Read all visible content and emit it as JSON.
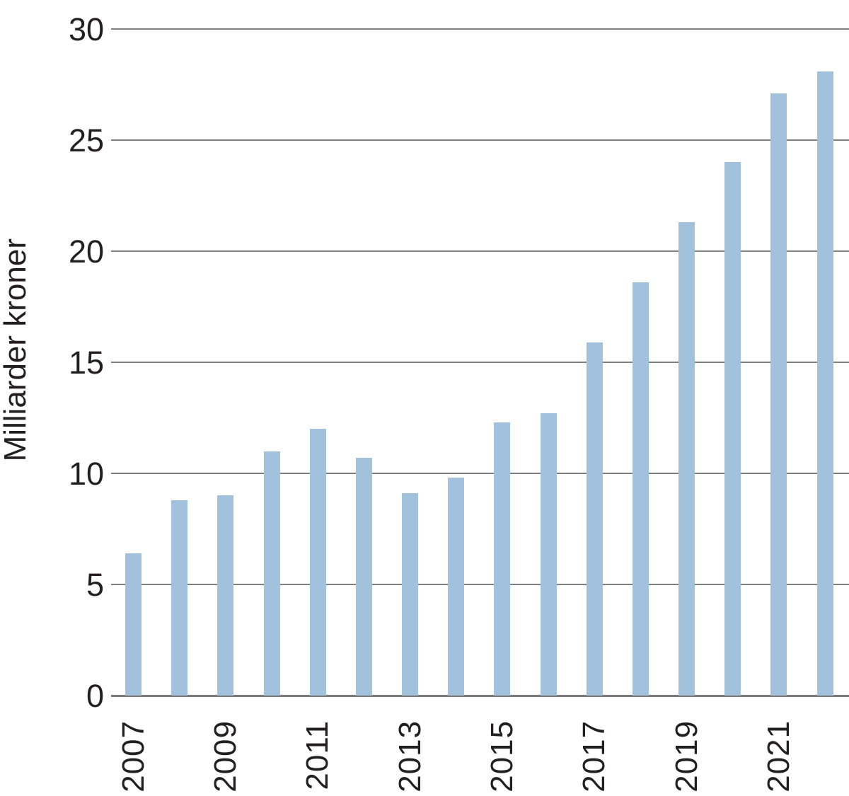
{
  "chart_data": {
    "type": "bar",
    "title": "",
    "xlabel": "",
    "ylabel": "Milliarder kroner",
    "categories": [
      "2007",
      "2008",
      "2009",
      "2010",
      "2011",
      "2012",
      "2013",
      "2014",
      "2015",
      "2016",
      "2017",
      "2018",
      "2019",
      "2020",
      "2021",
      "2022"
    ],
    "values": [
      6.4,
      8.8,
      9.0,
      11.0,
      12.0,
      10.7,
      9.1,
      9.8,
      12.3,
      12.7,
      15.9,
      18.6,
      21.3,
      24.0,
      27.1,
      28.1
    ],
    "x_tick_labels": [
      "2007",
      "2009",
      "2011",
      "2013",
      "2015",
      "2017",
      "2019",
      "2021"
    ],
    "y_ticks": [
      0,
      5,
      10,
      15,
      20,
      25,
      30
    ],
    "y_tick_labels": [
      "0",
      "5",
      "10",
      "15",
      "20",
      "25",
      "30"
    ],
    "ylim": [
      0,
      30
    ],
    "grid": "horizontal",
    "legend": "none",
    "colors": {
      "bar": "#a2c1dd",
      "gridline": "#7f7f7f",
      "zero_line": "#7a7a7a",
      "text": "#231f20"
    }
  }
}
